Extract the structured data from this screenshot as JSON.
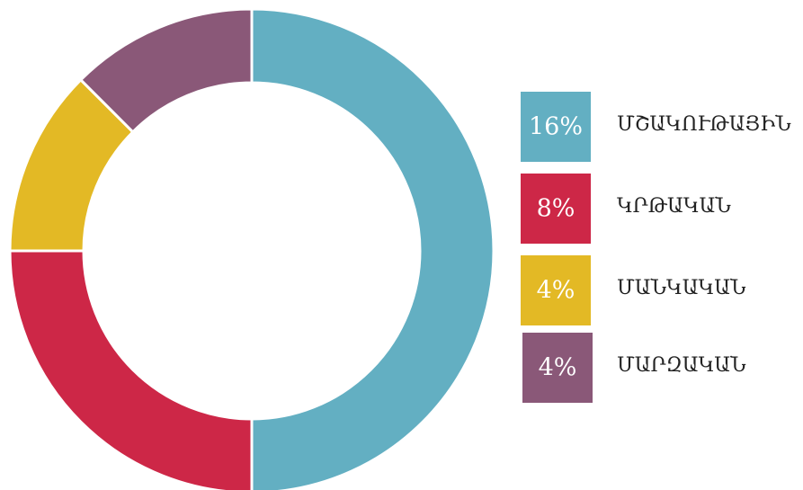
{
  "chart_data": {
    "type": "donut",
    "categories": [
      "ՄՇԱԿՈՒԹԱՅԻՆ",
      "ԿՐԹԱԿԱՆ",
      "ՄԱՆԿԱԿԱՆ",
      "ՄԱՐԶԱԿԱՆ"
    ],
    "values": [
      16,
      8,
      4,
      4
    ],
    "value_labels": [
      "16%",
      "8%",
      "4%",
      "4%"
    ],
    "colors": [
      "#63afc2",
      "#cd2747",
      "#e3b925",
      "#8a5878"
    ]
  }
}
